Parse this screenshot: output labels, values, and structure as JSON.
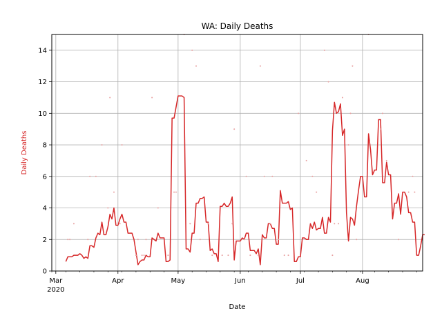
{
  "chart_data": {
    "type": "line",
    "title": "WA: Daily Deaths",
    "xlabel": "Date",
    "ylabel": "Daily Deaths",
    "ylabel_color": "#d62728",
    "line_color": "#d62728",
    "dot_color": "#e8a0a0",
    "grid": true,
    "xlim": [
      "2020-02-28",
      "2020-08-31"
    ],
    "ylim": [
      0,
      15
    ],
    "x_ticks": [
      {
        "date": "2020-03-01",
        "label": "Mar",
        "sub": "2020"
      },
      {
        "date": "2020-04-01",
        "label": "Apr",
        "sub": ""
      },
      {
        "date": "2020-05-01",
        "label": "May",
        "sub": ""
      },
      {
        "date": "2020-06-01",
        "label": "Jun",
        "sub": ""
      },
      {
        "date": "2020-07-01",
        "label": "Jul",
        "sub": ""
      },
      {
        "date": "2020-08-01",
        "label": "Aug",
        "sub": ""
      }
    ],
    "y_ticks": [
      0,
      2,
      4,
      6,
      8,
      10,
      12,
      14
    ],
    "series": [
      {
        "kind": "line",
        "points": [
          [
            "2020-03-06",
            0.6
          ],
          [
            "2020-03-07",
            0.9
          ],
          [
            "2020-03-08",
            0.9
          ],
          [
            "2020-03-09",
            0.9
          ],
          [
            "2020-03-10",
            1.0
          ],
          [
            "2020-03-11",
            1.0
          ],
          [
            "2020-03-12",
            1.0
          ],
          [
            "2020-03-13",
            1.1
          ],
          [
            "2020-03-14",
            1.0
          ],
          [
            "2020-03-15",
            0.8
          ],
          [
            "2020-03-16",
            0.9
          ],
          [
            "2020-03-17",
            0.8
          ],
          [
            "2020-03-18",
            1.6
          ],
          [
            "2020-03-19",
            1.6
          ],
          [
            "2020-03-20",
            1.5
          ],
          [
            "2020-03-21",
            2.1
          ],
          [
            "2020-03-22",
            2.4
          ],
          [
            "2020-03-23",
            2.3
          ],
          [
            "2020-03-24",
            3.1
          ],
          [
            "2020-03-25",
            2.3
          ],
          [
            "2020-03-26",
            2.3
          ],
          [
            "2020-03-27",
            2.8
          ],
          [
            "2020-03-28",
            3.6
          ],
          [
            "2020-03-29",
            3.3
          ],
          [
            "2020-03-30",
            4.0
          ],
          [
            "2020-03-31",
            2.9
          ],
          [
            "2020-04-01",
            2.9
          ],
          [
            "2020-04-02",
            3.3
          ],
          [
            "2020-04-03",
            3.6
          ],
          [
            "2020-04-04",
            3.1
          ],
          [
            "2020-04-05",
            3.1
          ],
          [
            "2020-04-06",
            2.4
          ],
          [
            "2020-04-07",
            2.4
          ],
          [
            "2020-04-08",
            2.4
          ],
          [
            "2020-04-09",
            2.0
          ],
          [
            "2020-04-10",
            1.2
          ],
          [
            "2020-04-11",
            0.4
          ],
          [
            "2020-04-12",
            0.6
          ],
          [
            "2020-04-13",
            0.7
          ],
          [
            "2020-04-14",
            0.7
          ],
          [
            "2020-04-15",
            1.0
          ],
          [
            "2020-04-16",
            0.9
          ],
          [
            "2020-04-17",
            0.9
          ],
          [
            "2020-04-18",
            2.1
          ],
          [
            "2020-04-19",
            2.0
          ],
          [
            "2020-04-20",
            1.9
          ],
          [
            "2020-04-21",
            2.4
          ],
          [
            "2020-04-22",
            2.1
          ],
          [
            "2020-04-23",
            2.1
          ],
          [
            "2020-04-24",
            2.1
          ],
          [
            "2020-04-25",
            0.6
          ],
          [
            "2020-04-26",
            0.6
          ],
          [
            "2020-04-27",
            0.7
          ],
          [
            "2020-04-28",
            9.7
          ],
          [
            "2020-04-29",
            9.7
          ],
          [
            "2020-04-30",
            10.4
          ],
          [
            "2020-05-01",
            11.1
          ],
          [
            "2020-05-02",
            11.1
          ],
          [
            "2020-05-03",
            11.1
          ],
          [
            "2020-05-04",
            11.0
          ],
          [
            "2020-05-05",
            1.4
          ],
          [
            "2020-05-06",
            1.4
          ],
          [
            "2020-05-07",
            1.2
          ],
          [
            "2020-05-08",
            2.4
          ],
          [
            "2020-05-09",
            2.4
          ],
          [
            "2020-05-10",
            4.3
          ],
          [
            "2020-05-11",
            4.3
          ],
          [
            "2020-05-12",
            4.6
          ],
          [
            "2020-05-13",
            4.6
          ],
          [
            "2020-05-14",
            4.7
          ],
          [
            "2020-05-15",
            3.1
          ],
          [
            "2020-05-16",
            3.1
          ],
          [
            "2020-05-17",
            1.3
          ],
          [
            "2020-05-18",
            1.4
          ],
          [
            "2020-05-19",
            1.1
          ],
          [
            "2020-05-20",
            1.1
          ],
          [
            "2020-05-21",
            0.6
          ],
          [
            "2020-05-22",
            4.1
          ],
          [
            "2020-05-23",
            4.1
          ],
          [
            "2020-05-24",
            4.3
          ],
          [
            "2020-05-25",
            4.1
          ],
          [
            "2020-05-26",
            4.1
          ],
          [
            "2020-05-27",
            4.3
          ],
          [
            "2020-05-28",
            4.7
          ],
          [
            "2020-05-29",
            0.7
          ],
          [
            "2020-05-30",
            1.9
          ],
          [
            "2020-05-31",
            1.9
          ],
          [
            "2020-06-01",
            1.9
          ],
          [
            "2020-06-02",
            2.1
          ],
          [
            "2020-06-03",
            2.0
          ],
          [
            "2020-06-04",
            2.4
          ],
          [
            "2020-06-05",
            2.4
          ],
          [
            "2020-06-06",
            1.3
          ],
          [
            "2020-06-07",
            1.3
          ],
          [
            "2020-06-08",
            1.3
          ],
          [
            "2020-06-09",
            1.1
          ],
          [
            "2020-06-10",
            1.4
          ],
          [
            "2020-06-11",
            0.4
          ],
          [
            "2020-06-12",
            2.3
          ],
          [
            "2020-06-13",
            2.1
          ],
          [
            "2020-06-14",
            2.1
          ],
          [
            "2020-06-15",
            3.0
          ],
          [
            "2020-06-16",
            3.0
          ],
          [
            "2020-06-17",
            2.7
          ],
          [
            "2020-06-18",
            2.7
          ],
          [
            "2020-06-19",
            1.7
          ],
          [
            "2020-06-20",
            1.7
          ],
          [
            "2020-06-21",
            5.1
          ],
          [
            "2020-06-22",
            4.3
          ],
          [
            "2020-06-23",
            4.3
          ],
          [
            "2020-06-24",
            4.3
          ],
          [
            "2020-06-25",
            4.4
          ],
          [
            "2020-06-26",
            3.9
          ],
          [
            "2020-06-27",
            4.0
          ],
          [
            "2020-06-28",
            0.6
          ],
          [
            "2020-06-29",
            0.6
          ],
          [
            "2020-06-30",
            0.9
          ],
          [
            "2020-07-01",
            0.9
          ],
          [
            "2020-07-02",
            2.1
          ],
          [
            "2020-07-03",
            2.1
          ],
          [
            "2020-07-04",
            2.0
          ],
          [
            "2020-07-05",
            2.0
          ],
          [
            "2020-07-06",
            3.0
          ],
          [
            "2020-07-07",
            2.7
          ],
          [
            "2020-07-08",
            3.1
          ],
          [
            "2020-07-09",
            2.6
          ],
          [
            "2020-07-10",
            2.7
          ],
          [
            "2020-07-11",
            2.7
          ],
          [
            "2020-07-12",
            3.4
          ],
          [
            "2020-07-13",
            2.4
          ],
          [
            "2020-07-14",
            2.4
          ],
          [
            "2020-07-15",
            3.4
          ],
          [
            "2020-07-16",
            3.1
          ],
          [
            "2020-07-17",
            8.9
          ],
          [
            "2020-07-18",
            10.7
          ],
          [
            "2020-07-19",
            10.0
          ],
          [
            "2020-07-20",
            10.1
          ],
          [
            "2020-07-21",
            10.6
          ],
          [
            "2020-07-22",
            8.6
          ],
          [
            "2020-07-23",
            9.0
          ],
          [
            "2020-07-24",
            3.7
          ],
          [
            "2020-07-25",
            1.9
          ],
          [
            "2020-07-26",
            3.4
          ],
          [
            "2020-07-27",
            3.3
          ],
          [
            "2020-07-28",
            2.9
          ],
          [
            "2020-07-29",
            4.1
          ],
          [
            "2020-07-30",
            5.1
          ],
          [
            "2020-07-31",
            6.0
          ],
          [
            "2020-08-01",
            6.0
          ],
          [
            "2020-08-02",
            4.7
          ],
          [
            "2020-08-03",
            4.7
          ],
          [
            "2020-08-04",
            8.7
          ],
          [
            "2020-08-05",
            7.7
          ],
          [
            "2020-08-06",
            6.1
          ],
          [
            "2020-08-07",
            6.4
          ],
          [
            "2020-08-08",
            6.4
          ],
          [
            "2020-08-09",
            9.6
          ],
          [
            "2020-08-10",
            9.6
          ],
          [
            "2020-08-11",
            5.6
          ],
          [
            "2020-08-12",
            5.6
          ],
          [
            "2020-08-13",
            6.9
          ],
          [
            "2020-08-14",
            6.1
          ],
          [
            "2020-08-15",
            6.1
          ],
          [
            "2020-08-16",
            3.3
          ],
          [
            "2020-08-17",
            4.3
          ],
          [
            "2020-08-18",
            4.3
          ],
          [
            "2020-08-19",
            4.9
          ],
          [
            "2020-08-20",
            3.6
          ],
          [
            "2020-08-21",
            5.0
          ],
          [
            "2020-08-22",
            5.0
          ],
          [
            "2020-08-23",
            4.7
          ],
          [
            "2020-08-24",
            3.7
          ],
          [
            "2020-08-25",
            3.7
          ],
          [
            "2020-08-26",
            3.1
          ],
          [
            "2020-08-27",
            3.1
          ],
          [
            "2020-08-28",
            1.0
          ],
          [
            "2020-08-29",
            1.0
          ],
          [
            "2020-08-30",
            1.6
          ],
          [
            "2020-08-31",
            2.3
          ],
          [
            "2020-09-01",
            2.3
          ]
        ]
      },
      {
        "kind": "scatter",
        "points": [
          [
            "2020-03-07",
            2
          ],
          [
            "2020-03-08",
            2
          ],
          [
            "2020-03-10",
            3
          ],
          [
            "2020-03-17",
            2
          ],
          [
            "2020-03-18",
            6
          ],
          [
            "2020-03-21",
            6
          ],
          [
            "2020-03-24",
            8
          ],
          [
            "2020-03-27",
            4
          ],
          [
            "2020-03-28",
            11
          ],
          [
            "2020-03-30",
            5
          ],
          [
            "2020-04-02",
            3
          ],
          [
            "2020-04-03",
            8
          ],
          [
            "2020-04-10",
            1
          ],
          [
            "2020-04-11",
            2
          ],
          [
            "2020-04-13",
            1
          ],
          [
            "2020-04-14",
            1
          ],
          [
            "2020-04-15",
            2
          ],
          [
            "2020-04-18",
            11
          ],
          [
            "2020-04-21",
            4
          ],
          [
            "2020-04-26",
            1
          ],
          [
            "2020-04-29",
            5
          ],
          [
            "2020-04-30",
            5
          ],
          [
            "2020-05-04",
            15
          ],
          [
            "2020-05-07",
            3
          ],
          [
            "2020-05-08",
            14
          ],
          [
            "2020-05-10",
            13
          ],
          [
            "2020-05-12",
            2
          ],
          [
            "2020-05-16",
            3
          ],
          [
            "2020-05-18",
            1
          ],
          [
            "2020-05-23",
            1
          ],
          [
            "2020-05-26",
            1
          ],
          [
            "2020-05-28",
            3
          ],
          [
            "2020-05-29",
            9
          ],
          [
            "2020-06-03",
            2
          ],
          [
            "2020-06-04",
            6
          ],
          [
            "2020-06-06",
            1
          ],
          [
            "2020-06-10",
            1
          ],
          [
            "2020-06-11",
            13
          ],
          [
            "2020-06-13",
            6
          ],
          [
            "2020-06-16",
            3
          ],
          [
            "2020-06-17",
            6
          ],
          [
            "2020-06-20",
            2
          ],
          [
            "2020-06-23",
            1
          ],
          [
            "2020-06-25",
            1
          ],
          [
            "2020-06-30",
            10
          ],
          [
            "2020-07-04",
            7
          ],
          [
            "2020-07-07",
            6
          ],
          [
            "2020-07-09",
            5
          ],
          [
            "2020-07-13",
            14
          ],
          [
            "2020-07-15",
            12
          ],
          [
            "2020-07-17",
            1
          ],
          [
            "2020-07-18",
            3
          ],
          [
            "2020-07-20",
            3
          ],
          [
            "2020-07-22",
            11
          ],
          [
            "2020-07-25",
            8
          ],
          [
            "2020-07-26",
            10
          ],
          [
            "2020-07-27",
            13
          ],
          [
            "2020-07-29",
            2
          ],
          [
            "2020-08-04",
            15
          ],
          [
            "2020-08-10",
            9
          ],
          [
            "2020-08-11",
            10
          ],
          [
            "2020-08-13",
            7
          ],
          [
            "2020-08-19",
            2
          ],
          [
            "2020-08-24",
            5
          ],
          [
            "2020-08-26",
            6
          ],
          [
            "2020-08-27",
            5
          ]
        ]
      }
    ]
  }
}
